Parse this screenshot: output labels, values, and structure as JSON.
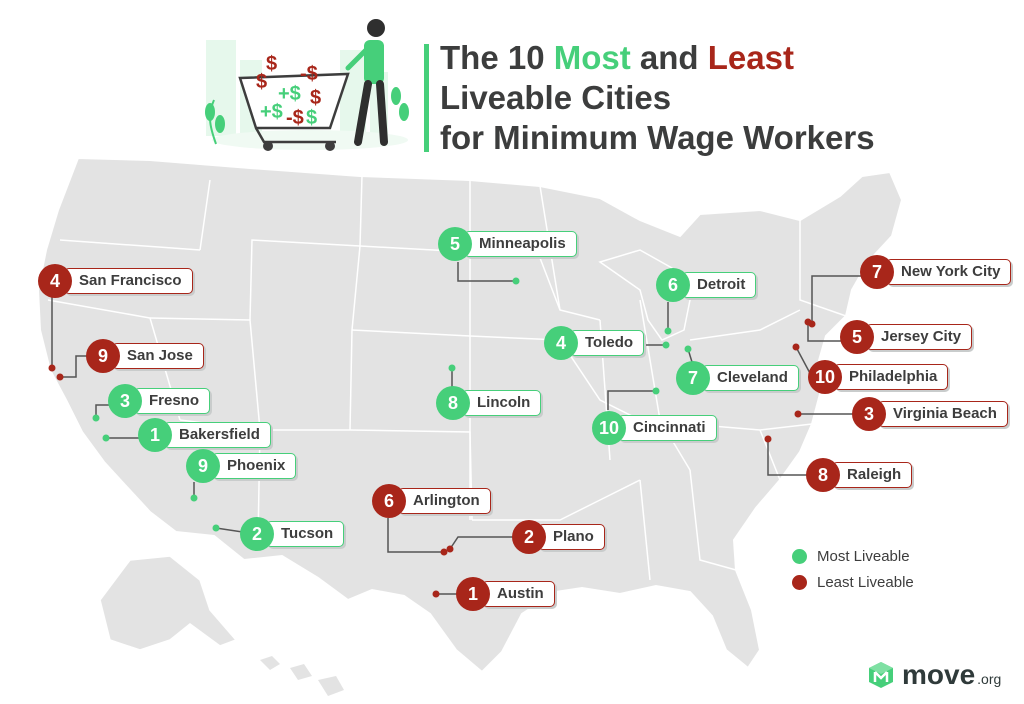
{
  "title": {
    "line1_pre": "The 10 ",
    "line1_most": "Most",
    "line1_mid": " and ",
    "line1_least": "Least",
    "line2": "Liveable Cities",
    "line3": "for Minimum Wage Workers"
  },
  "colors": {
    "most": "#46cf7a",
    "least": "#a8261a",
    "map_fill": "#e3e3e3",
    "map_stroke": "#ffffff",
    "leader": "#555555"
  },
  "legend": {
    "most_label": "Most Liveable",
    "least_label": "Least Liveable"
  },
  "logo": {
    "word": "move",
    "suffix": ".org",
    "icon": "move-cube-icon"
  },
  "illustration": {
    "icon": "shopping-cart-woman-money-illustration",
    "cart_symbols": [
      "$",
      "+$",
      "-$",
      "$",
      "+$",
      "-$",
      "$",
      "$"
    ]
  },
  "cities": [
    {
      "name": "Minneapolis",
      "rank": "5",
      "group": "most"
    },
    {
      "name": "San Francisco",
      "rank": "4",
      "group": "least"
    },
    {
      "name": "Detroit",
      "rank": "6",
      "group": "most"
    },
    {
      "name": "New York City",
      "rank": "7",
      "group": "least"
    },
    {
      "name": "Toledo",
      "rank": "4",
      "group": "most"
    },
    {
      "name": "Jersey City",
      "rank": "5",
      "group": "least"
    },
    {
      "name": "San Jose",
      "rank": "9",
      "group": "least"
    },
    {
      "name": "Cleveland",
      "rank": "7",
      "group": "most"
    },
    {
      "name": "Philadelphia",
      "rank": "10",
      "group": "least"
    },
    {
      "name": "Fresno",
      "rank": "3",
      "group": "most"
    },
    {
      "name": "Lincoln",
      "rank": "8",
      "group": "most"
    },
    {
      "name": "Virginia Beach",
      "rank": "3",
      "group": "least"
    },
    {
      "name": "Cincinnati",
      "rank": "10",
      "group": "most"
    },
    {
      "name": "Bakersfield",
      "rank": "1",
      "group": "most"
    },
    {
      "name": "Phoenix",
      "rank": "9",
      "group": "most"
    },
    {
      "name": "Raleigh",
      "rank": "8",
      "group": "least"
    },
    {
      "name": "Arlington",
      "rank": "6",
      "group": "least"
    },
    {
      "name": "Tucson",
      "rank": "2",
      "group": "most"
    },
    {
      "name": "Plano",
      "rank": "2",
      "group": "least"
    },
    {
      "name": "Austin",
      "rank": "1",
      "group": "least"
    }
  ]
}
